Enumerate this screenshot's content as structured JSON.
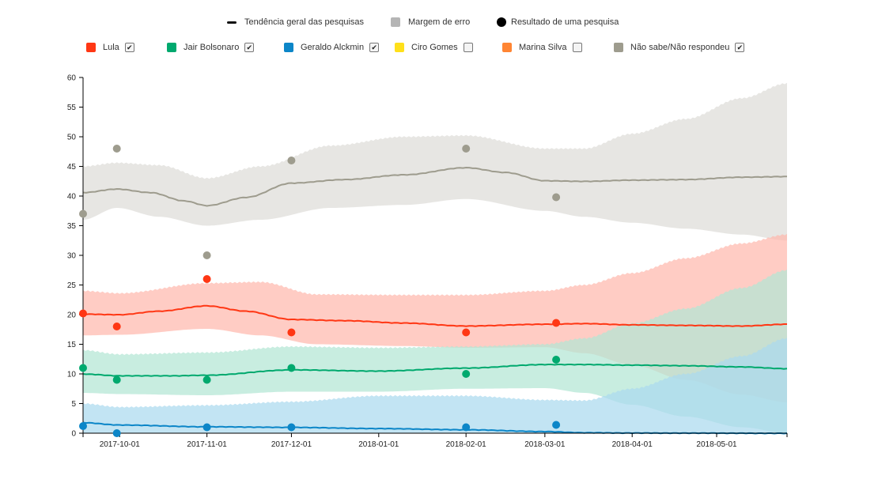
{
  "legend_top": [
    {
      "label": "Tendência geral das pesquisas",
      "kind": "line"
    },
    {
      "label": "Margem de erro",
      "kind": "square"
    },
    {
      "label": "Resultado de uma pesquisa",
      "kind": "dot"
    }
  ],
  "candidates": [
    {
      "name": "Lula",
      "color": "#ff3714",
      "checked": true,
      "checkbox": "✔"
    },
    {
      "name": "Jair Bolsonaro",
      "color": "#00a96e",
      "checked": true,
      "checkbox": "✔"
    },
    {
      "name": "Geraldo Alckmin",
      "color": "#0c86c8",
      "checked": true,
      "checkbox": "✔"
    },
    {
      "name": "Ciro Gomes",
      "color": "#ffe01a",
      "checked": false,
      "checkbox": ""
    },
    {
      "name": "Marina Silva",
      "color": "#ff8533",
      "checked": false,
      "checkbox": ""
    },
    {
      "name": "Não sabe/Não respondeu",
      "color": "#9e9c8e",
      "checked": true,
      "checkbox": "✔"
    }
  ],
  "chart_data": {
    "type": "line",
    "x_axis": {
      "type": "date",
      "range": [
        "2017-09-18",
        "2018-05-26"
      ],
      "ticks": [
        "2017-10-01",
        "2017-11-01",
        "2017-12-01",
        "2018-01-01",
        "2018-02-01",
        "2018-03-01",
        "2018-04-01",
        "2018-05-01"
      ]
    },
    "y_axis": {
      "range": [
        0,
        60
      ],
      "ticks": [
        0,
        5,
        10,
        15,
        20,
        25,
        30,
        35,
        40,
        45,
        50,
        55,
        60
      ]
    },
    "series": [
      {
        "name": "Não sabe/Não respondeu",
        "color": "#9e9c8e",
        "band_color": "#dedcd8",
        "trend": [
          [
            "2017-09-18",
            40.6
          ],
          [
            "2017-09-30",
            41.2
          ],
          [
            "2017-10-12",
            40.6
          ],
          [
            "2017-10-24",
            39.2
          ],
          [
            "2017-11-01",
            38.4
          ],
          [
            "2017-11-15",
            39.8
          ],
          [
            "2017-12-01",
            42.2
          ],
          [
            "2017-12-20",
            42.8
          ],
          [
            "2018-01-10",
            43.6
          ],
          [
            "2018-02-01",
            44.8
          ],
          [
            "2018-02-15",
            44.0
          ],
          [
            "2018-03-01",
            42.6
          ],
          [
            "2018-03-15",
            42.5
          ],
          [
            "2018-04-01",
            42.7
          ],
          [
            "2018-04-20",
            42.8
          ],
          [
            "2018-05-10",
            43.2
          ],
          [
            "2018-05-26",
            43.3
          ]
        ],
        "band_upper": [
          [
            "2017-09-18",
            45.0
          ],
          [
            "2017-09-30",
            45.6
          ],
          [
            "2017-10-15",
            45.2
          ],
          [
            "2017-11-01",
            43.0
          ],
          [
            "2017-11-20",
            45.0
          ],
          [
            "2017-12-15",
            48.5
          ],
          [
            "2018-01-10",
            50.0
          ],
          [
            "2018-02-01",
            50.2
          ],
          [
            "2018-03-01",
            48.0
          ],
          [
            "2018-03-15",
            48.0
          ],
          [
            "2018-04-01",
            50.5
          ],
          [
            "2018-04-20",
            53.0
          ],
          [
            "2018-05-10",
            56.5
          ],
          [
            "2018-05-26",
            59.0
          ]
        ],
        "band_lower": [
          [
            "2017-09-18",
            36.0
          ],
          [
            "2017-09-30",
            38.0
          ],
          [
            "2017-10-15",
            36.5
          ],
          [
            "2017-11-01",
            35.0
          ],
          [
            "2017-11-20",
            36.0
          ],
          [
            "2017-12-15",
            38.0
          ],
          [
            "2018-01-10",
            38.5
          ],
          [
            "2018-02-01",
            39.5
          ],
          [
            "2018-03-01",
            37.5
          ],
          [
            "2018-03-15",
            36.5
          ],
          [
            "2018-04-01",
            35.5
          ],
          [
            "2018-04-20",
            34.5
          ],
          [
            "2018-05-10",
            33.5
          ],
          [
            "2018-05-26",
            32.5
          ]
        ],
        "polls": [
          [
            "2017-09-18",
            37
          ],
          [
            "2017-09-30",
            48
          ],
          [
            "2017-11-01",
            30
          ],
          [
            "2017-12-01",
            46
          ],
          [
            "2018-02-01",
            48
          ],
          [
            "2018-03-05",
            39.8
          ]
        ]
      },
      {
        "name": "Lula",
        "color": "#ff3714",
        "band_color": "#ffb8ad",
        "trend": [
          [
            "2017-09-18",
            20.1
          ],
          [
            "2017-10-01",
            20.0
          ],
          [
            "2017-10-15",
            20.6
          ],
          [
            "2017-11-01",
            21.5
          ],
          [
            "2017-11-15",
            20.6
          ],
          [
            "2017-12-01",
            19.2
          ],
          [
            "2017-12-20",
            19.0
          ],
          [
            "2018-01-10",
            18.6
          ],
          [
            "2018-02-01",
            18.1
          ],
          [
            "2018-03-01",
            18.4
          ],
          [
            "2018-03-15",
            18.5
          ],
          [
            "2018-04-01",
            18.3
          ],
          [
            "2018-04-20",
            18.2
          ],
          [
            "2018-05-10",
            18.1
          ],
          [
            "2018-05-26",
            18.4
          ]
        ],
        "band_upper": [
          [
            "2017-09-18",
            24.0
          ],
          [
            "2017-10-01",
            23.6
          ],
          [
            "2017-11-01",
            25.3
          ],
          [
            "2017-11-20",
            25.5
          ],
          [
            "2017-12-10",
            23.4
          ],
          [
            "2018-01-10",
            23.3
          ],
          [
            "2018-02-01",
            23.3
          ],
          [
            "2018-03-01",
            24.0
          ],
          [
            "2018-03-15",
            25.0
          ],
          [
            "2018-04-01",
            27.0
          ],
          [
            "2018-04-20",
            29.5
          ],
          [
            "2018-05-10",
            32.0
          ],
          [
            "2018-05-26",
            33.5
          ]
        ],
        "band_lower": [
          [
            "2017-09-18",
            16.5
          ],
          [
            "2017-10-01",
            16.6
          ],
          [
            "2017-11-01",
            17.6
          ],
          [
            "2017-11-20",
            16.5
          ],
          [
            "2017-12-10",
            15.0
          ],
          [
            "2018-01-10",
            14.7
          ],
          [
            "2018-02-01",
            14.4
          ],
          [
            "2018-03-01",
            14.5
          ],
          [
            "2018-03-15",
            13.5
          ],
          [
            "2018-04-01",
            11.5
          ],
          [
            "2018-04-20",
            9.0
          ],
          [
            "2018-05-10",
            6.5
          ],
          [
            "2018-05-26",
            5.2
          ]
        ],
        "polls": [
          [
            "2017-09-18",
            20.2
          ],
          [
            "2017-09-30",
            18
          ],
          [
            "2017-11-01",
            26
          ],
          [
            "2017-12-01",
            17
          ],
          [
            "2018-02-01",
            17
          ],
          [
            "2018-03-05",
            18.6
          ]
        ]
      },
      {
        "name": "Jair Bolsonaro",
        "color": "#00a96e",
        "band_color": "#b3e6d4",
        "trend": [
          [
            "2017-09-18",
            10.0
          ],
          [
            "2017-10-01",
            9.7
          ],
          [
            "2017-10-20",
            9.7
          ],
          [
            "2017-11-01",
            9.8
          ],
          [
            "2017-12-01",
            10.7
          ],
          [
            "2018-01-01",
            10.5
          ],
          [
            "2018-02-01",
            11.0
          ],
          [
            "2018-03-01",
            11.6
          ],
          [
            "2018-03-15",
            11.6
          ],
          [
            "2018-04-01",
            11.5
          ],
          [
            "2018-04-20",
            11.4
          ],
          [
            "2018-05-10",
            11.2
          ],
          [
            "2018-05-26",
            10.9
          ]
        ],
        "band_upper": [
          [
            "2017-09-18",
            14.0
          ],
          [
            "2017-10-01",
            13.3
          ],
          [
            "2017-11-01",
            13.6
          ],
          [
            "2017-12-01",
            14.6
          ],
          [
            "2018-01-01",
            14.4
          ],
          [
            "2018-02-01",
            14.6
          ],
          [
            "2018-03-01",
            15.0
          ],
          [
            "2018-03-15",
            16.0
          ],
          [
            "2018-04-01",
            18.5
          ],
          [
            "2018-04-20",
            21.0
          ],
          [
            "2018-05-10",
            24.5
          ],
          [
            "2018-05-26",
            27.5
          ]
        ],
        "band_lower": [
          [
            "2017-09-18",
            6.8
          ],
          [
            "2017-10-01",
            6.6
          ],
          [
            "2017-11-01",
            6.4
          ],
          [
            "2017-12-01",
            7.0
          ],
          [
            "2018-01-01",
            7.0
          ],
          [
            "2018-02-01",
            7.5
          ],
          [
            "2018-03-01",
            7.6
          ],
          [
            "2018-03-15",
            6.8
          ],
          [
            "2018-04-01",
            4.8
          ],
          [
            "2018-04-20",
            2.8
          ],
          [
            "2018-05-10",
            1.0
          ],
          [
            "2018-05-26",
            0.0
          ]
        ],
        "polls": [
          [
            "2017-09-18",
            11
          ],
          [
            "2017-09-30",
            9
          ],
          [
            "2017-11-01",
            9
          ],
          [
            "2017-12-01",
            11
          ],
          [
            "2018-02-01",
            10
          ],
          [
            "2018-03-05",
            12.4
          ]
        ]
      },
      {
        "name": "Geraldo Alckmin",
        "color": "#0c86c8",
        "band_color": "#abd9ee",
        "trend": [
          [
            "2017-09-18",
            1.8
          ],
          [
            "2017-10-01",
            1.4
          ],
          [
            "2017-11-01",
            1.1
          ],
          [
            "2017-12-01",
            1.0
          ],
          [
            "2018-01-01",
            0.8
          ],
          [
            "2018-02-01",
            0.6
          ],
          [
            "2018-03-01",
            0.3
          ],
          [
            "2018-03-15",
            0.1
          ],
          [
            "2018-04-01",
            0.05
          ],
          [
            "2018-05-26",
            0.0
          ]
        ],
        "band_upper": [
          [
            "2017-09-18",
            5.0
          ],
          [
            "2017-10-01",
            4.4
          ],
          [
            "2017-11-01",
            4.7
          ],
          [
            "2017-12-01",
            5.3
          ],
          [
            "2018-01-01",
            6.3
          ],
          [
            "2018-02-01",
            6.3
          ],
          [
            "2018-03-01",
            5.6
          ],
          [
            "2018-03-15",
            5.5
          ],
          [
            "2018-04-01",
            7.5
          ],
          [
            "2018-04-20",
            10.0
          ],
          [
            "2018-05-10",
            13.0
          ],
          [
            "2018-05-26",
            16.0
          ]
        ],
        "band_lower": [
          [
            "2017-09-18",
            0.0
          ],
          [
            "2018-05-26",
            0.0
          ]
        ],
        "polls": [
          [
            "2017-09-18",
            1.2
          ],
          [
            "2017-09-30",
            0
          ],
          [
            "2017-11-01",
            1
          ],
          [
            "2017-12-01",
            1
          ],
          [
            "2018-02-01",
            1
          ],
          [
            "2018-03-05",
            1.4
          ]
        ]
      }
    ]
  }
}
